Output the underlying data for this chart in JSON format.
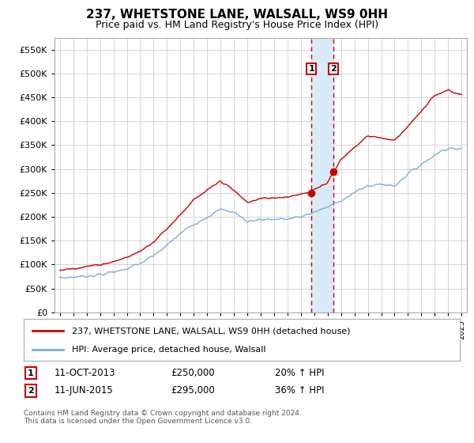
{
  "title": "237, WHETSTONE LANE, WALSALL, WS9 0HH",
  "subtitle": "Price paid vs. HM Land Registry's House Price Index (HPI)",
  "ylim": [
    0,
    575000
  ],
  "yticks": [
    0,
    50000,
    100000,
    150000,
    200000,
    250000,
    300000,
    350000,
    400000,
    450000,
    500000,
    550000
  ],
  "ytick_labels": [
    "£0",
    "£50K",
    "£100K",
    "£150K",
    "£200K",
    "£250K",
    "£300K",
    "£350K",
    "£400K",
    "£450K",
    "£500K",
    "£550K"
  ],
  "xlim_start": 1994.6,
  "xlim_end": 2025.4,
  "marker1_x": 2013.78,
  "marker1_y": 250000,
  "marker2_x": 2015.44,
  "marker2_y": 295000,
  "marker1_date": "11-OCT-2013",
  "marker1_price": "£250,000",
  "marker1_hpi": "20% ↑ HPI",
  "marker2_date": "11-JUN-2015",
  "marker2_price": "£295,000",
  "marker2_hpi": "36% ↑ HPI",
  "red_line_color": "#cc0000",
  "blue_line_color": "#7bafd4",
  "grid_color": "#cccccc",
  "shade_color": "#d8eaf8",
  "legend1": "237, WHETSTONE LANE, WALSALL, WS9 0HH (detached house)",
  "legend2": "HPI: Average price, detached house, Walsall",
  "footnote": "Contains HM Land Registry data © Crown copyright and database right 2024.\nThis data is licensed under the Open Government Licence v3.0.",
  "background_color": "#ffffff",
  "hpi_years": [
    1995,
    1996,
    1997,
    1998,
    1999,
    2000,
    2001,
    2002,
    2003,
    2004,
    2005,
    2006,
    2007,
    2008,
    2009,
    2010,
    2011,
    2012,
    2013,
    2014,
    2015,
    2016,
    2017,
    2018,
    2019,
    2020,
    2021,
    2022,
    2023,
    2024,
    2025
  ],
  "hpi_vals": [
    72000,
    74000,
    76000,
    79000,
    84000,
    92000,
    102000,
    118000,
    140000,
    165000,
    185000,
    200000,
    215000,
    210000,
    190000,
    195000,
    195000,
    195000,
    200000,
    210000,
    220000,
    235000,
    250000,
    265000,
    268000,
    265000,
    290000,
    310000,
    330000,
    345000,
    340000
  ],
  "prop_years": [
    1995,
    1996,
    1997,
    1998,
    1999,
    2000,
    2001,
    2002,
    2003,
    2004,
    2005,
    2006,
    2007,
    2008,
    2009,
    2010,
    2011,
    2012,
    2013,
    2013.78,
    2014,
    2015,
    2015.44,
    2016,
    2017,
    2018,
    2019,
    2020,
    2021,
    2022,
    2023,
    2024,
    2025
  ],
  "prop_vals": [
    88000,
    92000,
    96000,
    100000,
    106000,
    115000,
    128000,
    148000,
    175000,
    205000,
    235000,
    255000,
    275000,
    255000,
    230000,
    238000,
    240000,
    242000,
    248000,
    250000,
    258000,
    272000,
    295000,
    320000,
    345000,
    370000,
    365000,
    360000,
    390000,
    420000,
    455000,
    465000,
    455000
  ]
}
